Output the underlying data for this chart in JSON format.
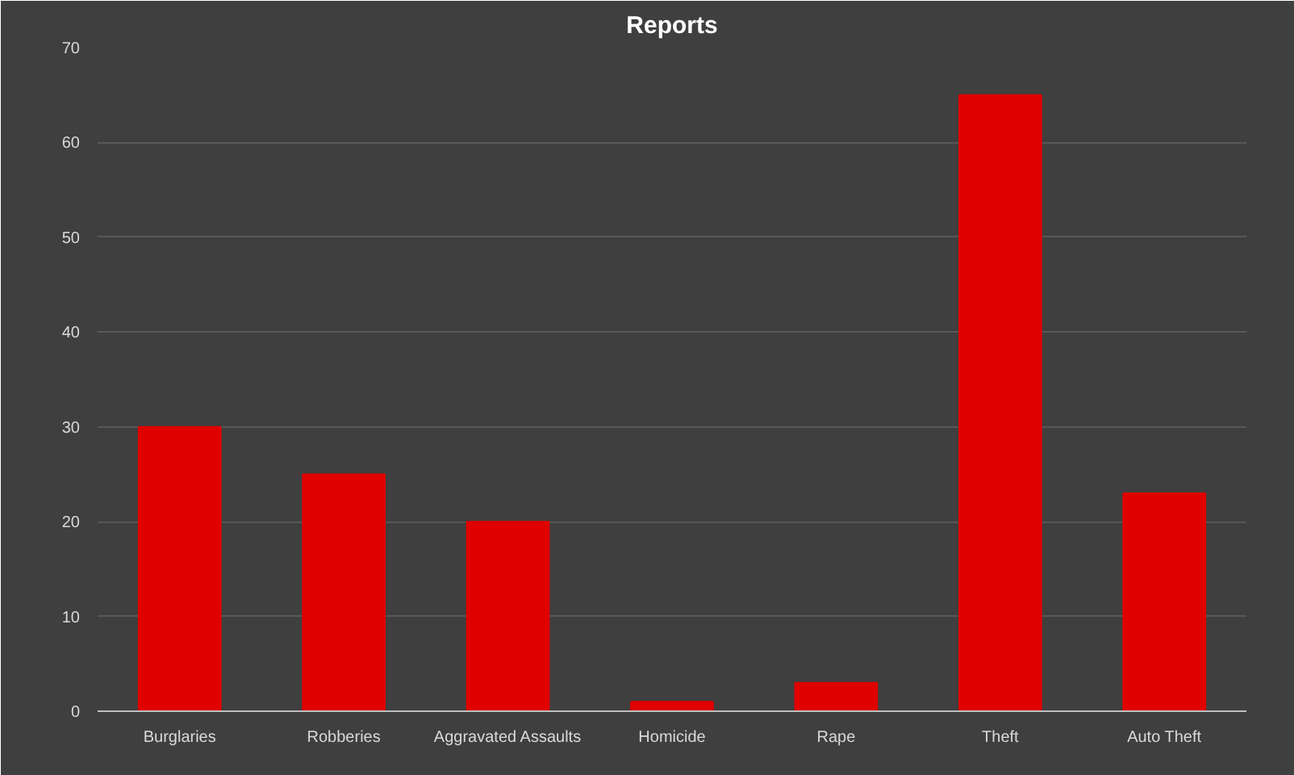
{
  "chart_data": {
    "type": "bar",
    "title": "Reports",
    "categories": [
      "Burglaries",
      "Robberies",
      "Aggravated Assaults",
      "Homicide",
      "Rape",
      "Theft",
      "Auto Theft"
    ],
    "values": [
      30,
      25,
      20,
      1,
      3,
      65,
      23
    ],
    "color": "#e00000",
    "ylim": [
      0,
      70
    ],
    "yticks": [
      0,
      10,
      20,
      30,
      40,
      50,
      60,
      70
    ],
    "grid": "y"
  }
}
